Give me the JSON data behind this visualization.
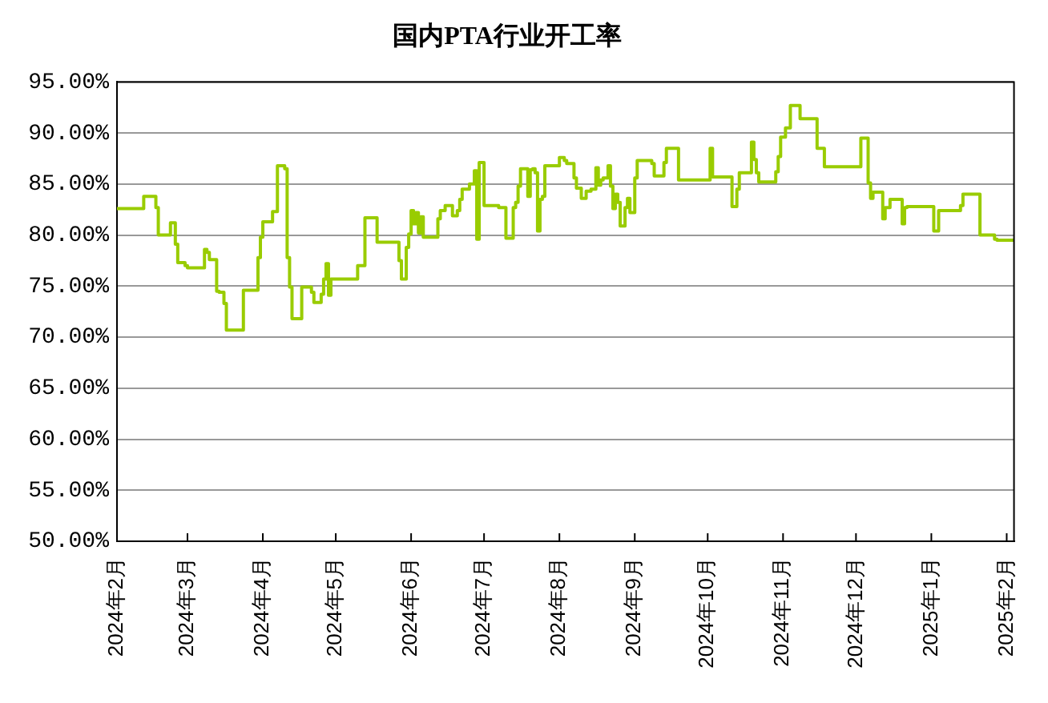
{
  "chart_data": {
    "type": "step",
    "title": "国内PTA行业开工率",
    "x": [
      "2024-02-01",
      "2024-02-12",
      "2024-02-13",
      "2024-02-17",
      "2024-02-18",
      "2024-02-19",
      "2024-02-23",
      "2024-02-24",
      "2024-02-25",
      "2024-02-26",
      "2024-02-27",
      "2024-02-29",
      "2024-03-01",
      "2024-03-02",
      "2024-03-08",
      "2024-03-09",
      "2024-03-10",
      "2024-03-11",
      "2024-03-13",
      "2024-03-14",
      "2024-03-16",
      "2024-03-17",
      "2024-03-18",
      "2024-03-24",
      "2024-03-25",
      "2024-03-30",
      "2024-03-31",
      "2024-04-01",
      "2024-04-02",
      "2024-04-05",
      "2024-04-06",
      "2024-04-07",
      "2024-04-08",
      "2024-04-10",
      "2024-04-11",
      "2024-04-12",
      "2024-04-13",
      "2024-04-14",
      "2024-04-17",
      "2024-04-18",
      "2024-04-21",
      "2024-04-22",
      "2024-04-23",
      "2024-04-25",
      "2024-04-26",
      "2024-04-27",
      "2024-04-28",
      "2024-04-29",
      "2024-04-30",
      "2024-05-10",
      "2024-05-11",
      "2024-05-13",
      "2024-05-14",
      "2024-05-18",
      "2024-05-19",
      "2024-05-27",
      "2024-05-28",
      "2024-05-29",
      "2024-05-30",
      "2024-05-31",
      "2024-06-01",
      "2024-06-02",
      "2024-06-03",
      "2024-06-04",
      "2024-06-05",
      "2024-06-06",
      "2024-06-07",
      "2024-06-12",
      "2024-06-13",
      "2024-06-14",
      "2024-06-15",
      "2024-06-16",
      "2024-06-18",
      "2024-06-19",
      "2024-06-20",
      "2024-06-21",
      "2024-06-22",
      "2024-06-23",
      "2024-06-25",
      "2024-06-26",
      "2024-06-27",
      "2024-06-28",
      "2024-06-29",
      "2024-06-30",
      "2024-07-01",
      "2024-07-02",
      "2024-07-07",
      "2024-07-08",
      "2024-07-10",
      "2024-07-11",
      "2024-07-13",
      "2024-07-14",
      "2024-07-15",
      "2024-07-16",
      "2024-07-17",
      "2024-07-19",
      "2024-07-20",
      "2024-07-21",
      "2024-07-22",
      "2024-07-23",
      "2024-07-24",
      "2024-07-25",
      "2024-07-26",
      "2024-07-27",
      "2024-08-01",
      "2024-08-03",
      "2024-08-04",
      "2024-08-07",
      "2024-08-08",
      "2024-08-10",
      "2024-08-12",
      "2024-08-14",
      "2024-08-16",
      "2024-08-17",
      "2024-08-18",
      "2024-08-19",
      "2024-08-21",
      "2024-08-22",
      "2024-08-23",
      "2024-08-24",
      "2024-08-25",
      "2024-08-26",
      "2024-08-27",
      "2024-08-28",
      "2024-08-29",
      "2024-08-30",
      "2024-09-01",
      "2024-09-02",
      "2024-09-05",
      "2024-09-08",
      "2024-09-09",
      "2024-09-12",
      "2024-09-13",
      "2024-09-14",
      "2024-09-16",
      "2024-09-19",
      "2024-09-20",
      "2024-10-02",
      "2024-10-03",
      "2024-10-04",
      "2024-10-11",
      "2024-10-12",
      "2024-10-13",
      "2024-10-14",
      "2024-10-15",
      "2024-10-19",
      "2024-10-20",
      "2024-10-21",
      "2024-10-22",
      "2024-10-23",
      "2024-10-29",
      "2024-10-30",
      "2024-10-31",
      "2024-11-02",
      "2024-11-04",
      "2024-11-06",
      "2024-11-08",
      "2024-11-09",
      "2024-11-15",
      "2024-11-16",
      "2024-11-18",
      "2024-11-19",
      "2024-12-03",
      "2024-12-04",
      "2024-12-06",
      "2024-12-07",
      "2024-12-08",
      "2024-12-09",
      "2024-12-12",
      "2024-12-13",
      "2024-12-15",
      "2024-12-16",
      "2024-12-20",
      "2024-12-21",
      "2024-12-22",
      "2024-12-23",
      "2025-01-02",
      "2025-01-03",
      "2025-01-04",
      "2025-01-05",
      "2025-01-13",
      "2025-01-14",
      "2025-01-16",
      "2025-01-21",
      "2025-01-22",
      "2025-01-27",
      "2025-01-28",
      "2025-02-04"
    ],
    "values": [
      82.6,
      82.6,
      83.8,
      83.8,
      82.7,
      80.0,
      80.0,
      81.2,
      81.2,
      79.1,
      77.3,
      77.3,
      77.0,
      76.8,
      76.8,
      78.6,
      78.3,
      77.6,
      77.6,
      74.5,
      74.4,
      73.3,
      70.7,
      70.7,
      74.6,
      74.6,
      77.8,
      79.8,
      81.3,
      81.3,
      82.3,
      82.3,
      86.8,
      86.8,
      86.5,
      77.8,
      74.9,
      71.8,
      71.8,
      74.9,
      74.9,
      74.4,
      73.4,
      73.4,
      74.2,
      75.7,
      77.2,
      74.1,
      75.7,
      75.7,
      77.0,
      77.0,
      81.7,
      81.7,
      79.3,
      79.3,
      77.5,
      75.7,
      75.7,
      78.8,
      80.1,
      82.4,
      81.1,
      82.2,
      80.2,
      81.8,
      79.8,
      79.8,
      81.6,
      82.4,
      82.4,
      82.9,
      82.9,
      81.9,
      81.9,
      82.4,
      83.5,
      84.5,
      84.5,
      85.0,
      85.0,
      86.3,
      79.6,
      87.1,
      87.1,
      82.9,
      82.9,
      82.7,
      82.7,
      79.7,
      79.7,
      82.7,
      83.2,
      84.8,
      86.5,
      86.5,
      83.8,
      86.4,
      86.5,
      86.1,
      80.4,
      83.5,
      83.8,
      86.8,
      86.8,
      87.6,
      87.3,
      87.0,
      85.6,
      84.6,
      83.6,
      84.3,
      84.5,
      86.6,
      84.9,
      85.4,
      85.6,
      86.8,
      84.8,
      82.6,
      84.0,
      83.2,
      80.9,
      80.9,
      82.7,
      83.6,
      82.2,
      85.6,
      87.3,
      87.3,
      87.0,
      85.8,
      85.8,
      87.1,
      88.5,
      88.5,
      85.4,
      85.4,
      88.5,
      85.7,
      85.7,
      82.8,
      82.8,
      84.5,
      86.1,
      86.1,
      89.1,
      87.4,
      86.1,
      85.2,
      85.2,
      86.2,
      87.7,
      89.6,
      90.5,
      92.7,
      92.7,
      91.4,
      91.4,
      88.5,
      88.5,
      86.7,
      86.7,
      89.5,
      89.5,
      85.1,
      83.6,
      84.2,
      84.2,
      81.6,
      82.7,
      83.5,
      83.5,
      81.1,
      82.7,
      82.8,
      82.8,
      80.4,
      80.4,
      82.4,
      82.4,
      82.9,
      84.0,
      84.0,
      80.0,
      80.0,
      79.6,
      79.5
    ],
    "color": "#99cc00",
    "marker": "none",
    "xlim": [
      "2024-02-01",
      "2025-02-04"
    ],
    "xticks": [
      {
        "value": "2024-02-01",
        "label": "2024年2月"
      },
      {
        "value": "2024-03-01",
        "label": "2024年3月"
      },
      {
        "value": "2024-04-01",
        "label": "2024年4月"
      },
      {
        "value": "2024-05-01",
        "label": "2024年5月"
      },
      {
        "value": "2024-06-01",
        "label": "2024年6月"
      },
      {
        "value": "2024-07-01",
        "label": "2024年7月"
      },
      {
        "value": "2024-08-01",
        "label": "2024年8月"
      },
      {
        "value": "2024-09-01",
        "label": "2024年9月"
      },
      {
        "value": "2024-10-01",
        "label": "2024年10月"
      },
      {
        "value": "2024-11-01",
        "label": "2024年11月"
      },
      {
        "value": "2024-12-01",
        "label": "2024年12月"
      },
      {
        "value": "2025-01-01",
        "label": "2025年1月"
      },
      {
        "value": "2025-02-01",
        "label": "2025年2月"
      }
    ],
    "ylim": [
      50,
      95
    ],
    "yticks": [
      {
        "value": 50,
        "label": "50.00%"
      },
      {
        "value": 55,
        "label": "55.00%"
      },
      {
        "value": 60,
        "label": "60.00%"
      },
      {
        "value": 65,
        "label": "65.00%"
      },
      {
        "value": 70,
        "label": "70.00%"
      },
      {
        "value": 75,
        "label": "75.00%"
      },
      {
        "value": 80,
        "label": "80.00%"
      },
      {
        "value": 85,
        "label": "85.00%"
      },
      {
        "value": 90,
        "label": "90.00%"
      },
      {
        "value": 95,
        "label": "95.00%"
      }
    ],
    "grid": "y"
  }
}
